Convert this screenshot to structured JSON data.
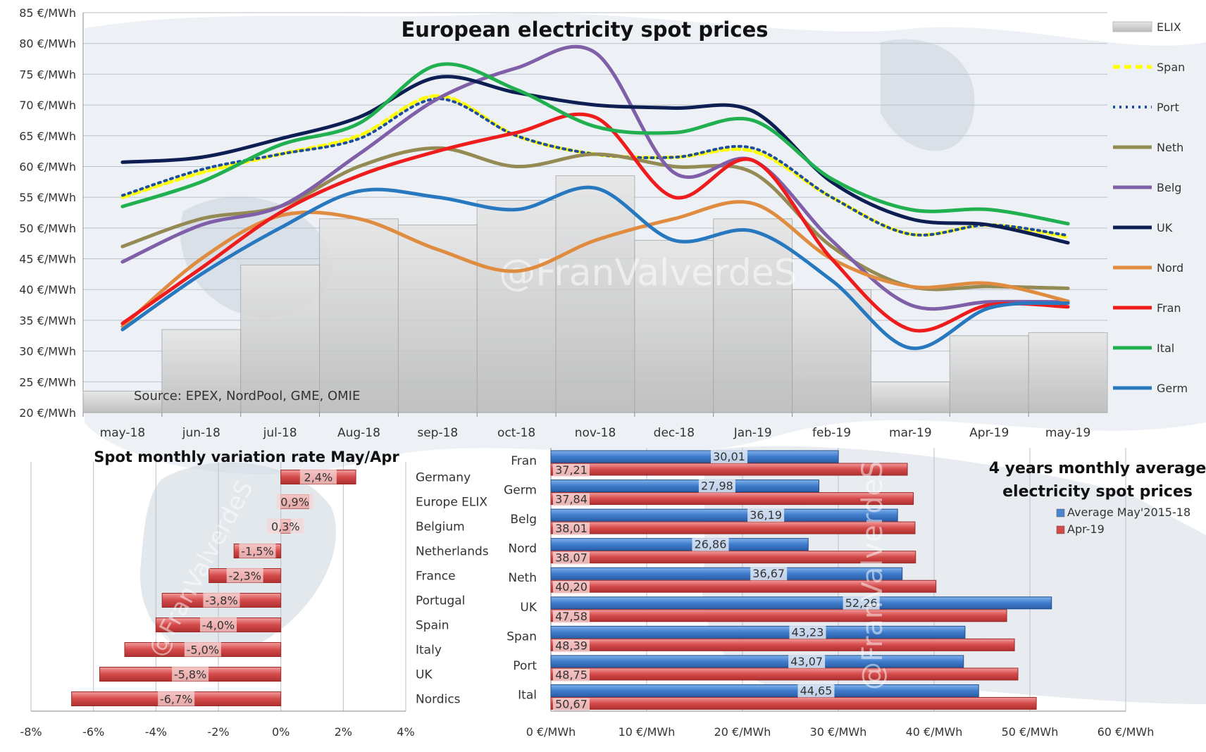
{
  "chart_data": [
    {
      "type": "line",
      "title": "European electricity spot prices",
      "source_note": "Source: EPEX, NordPool, GME, OMIE",
      "watermark": "@FranValverdeS",
      "y_unit": "€/MWh",
      "ylim": [
        20,
        85
      ],
      "y_ticks": [
        "20 €/MWh",
        "25 €/MWh",
        "30 €/MWh",
        "35 €/MWh",
        "40 €/MWh",
        "45 €/MWh",
        "50 €/MWh",
        "55 €/MWh",
        "60 €/MWh",
        "65 €/MWh",
        "70 €/MWh",
        "75 €/MWh",
        "80 €/MWh",
        "85 €/MWh"
      ],
      "categories": [
        "may-18",
        "jun-18",
        "jul-18",
        "Aug-18",
        "sep-18",
        "oct-18",
        "nov-18",
        "dec-18",
        "Jan-19",
        "feb-19",
        "mar-19",
        "Apr-19",
        "may-19"
      ],
      "grid": true,
      "legend_position": "right",
      "bar_series": {
        "name": "ELIX",
        "color": "#c8c8c8",
        "values": [
          23.5,
          33.5,
          44,
          51.5,
          50.5,
          54.5,
          58.5,
          48,
          51.5,
          40,
          25,
          32.5,
          33
        ]
      },
      "series": [
        {
          "name": "Span",
          "color": "#ffff00",
          "dash": "dash",
          "values": [
            55,
            59,
            62,
            65,
            71.5,
            65,
            62,
            61.5,
            62.5,
            55,
            49,
            50.5,
            48.5
          ]
        },
        {
          "name": "Port",
          "color": "#1f4e9c",
          "dash": "dot",
          "values": [
            55.3,
            59.5,
            62,
            64.5,
            71,
            65,
            62,
            61.5,
            63,
            55,
            49,
            50.5,
            48.8
          ]
        },
        {
          "name": "Neth",
          "color": "#948a54",
          "values": [
            47,
            51.5,
            53.5,
            60,
            63,
            60,
            62,
            60,
            59,
            47,
            40.5,
            40.5,
            40.2
          ]
        },
        {
          "name": "Belg",
          "color": "#7f5fa8",
          "values": [
            44.5,
            50.5,
            53.5,
            62,
            71,
            76,
            78.5,
            59,
            61,
            48,
            37.5,
            38,
            38
          ]
        },
        {
          "name": "UK",
          "color": "#0d1f52",
          "values": [
            60.7,
            61.5,
            64.5,
            68,
            74.5,
            72,
            70,
            69.5,
            69,
            57.5,
            51.5,
            50.5,
            47.6
          ]
        },
        {
          "name": "Nord",
          "color": "#e08c40",
          "values": [
            34,
            45,
            52,
            51.5,
            46.5,
            43,
            48,
            51.5,
            54,
            45,
            40.5,
            41,
            38.1
          ]
        },
        {
          "name": "Fran",
          "color": "#ee1c1c",
          "values": [
            34.5,
            43.5,
            52.5,
            58.5,
            62.5,
            65.5,
            68,
            55,
            61,
            45,
            33.5,
            37.5,
            37.2
          ]
        },
        {
          "name": "Ital",
          "color": "#20b050",
          "values": [
            53.5,
            57.5,
            63.5,
            67,
            76.5,
            72.5,
            66.5,
            65.5,
            67.5,
            58,
            53,
            53,
            50.7
          ]
        },
        {
          "name": "Germ",
          "color": "#2878c0",
          "values": [
            33.5,
            42.5,
            50,
            56,
            55,
            53,
            56.5,
            48,
            49.5,
            41.5,
            30.5,
            37,
            37.8
          ]
        }
      ]
    },
    {
      "type": "bar",
      "orientation": "horizontal",
      "title": "Spot monthly variation rate May/Apr",
      "color": "#d44a4a",
      "categories": [
        "Germany",
        "Europe ELIX",
        "Belgium",
        "Netherlands",
        "France",
        "Portugal",
        "Spain",
        "Italy",
        "UK",
        "Nordics"
      ],
      "values": [
        2.4,
        0.9,
        0.3,
        -1.5,
        -2.3,
        -3.8,
        -4.0,
        -5.0,
        -5.8,
        -6.7
      ],
      "labels": [
        "2,4%",
        "0,9%",
        "0,3%",
        "-1,5%",
        "-2,3%",
        "-3,8%",
        "-4,0%",
        "-5,0%",
        "-5,8%",
        "-6,7%"
      ],
      "xlim": [
        -8,
        4
      ],
      "x_ticks": [
        "-8%",
        "-6%",
        "-4%",
        "-2%",
        "0%",
        "2%",
        "4%"
      ],
      "grid": true
    },
    {
      "type": "bar",
      "orientation": "horizontal",
      "title": "4 years monthly average electricity spot prices",
      "legend_position": "top-right",
      "categories": [
        "Fran",
        "Germ",
        "Belg",
        "Nord",
        "Neth",
        "UK",
        "Span",
        "Port",
        "Ital"
      ],
      "series": [
        {
          "name": "Average May'2015-18",
          "color": "#4a86d0",
          "values": [
            30.01,
            27.98,
            36.19,
            26.86,
            36.67,
            52.26,
            43.23,
            43.07,
            44.65
          ],
          "labels": [
            "30,01",
            "27,98",
            "36,19",
            "26,86",
            "36,67",
            "52,26",
            "43,23",
            "43,07",
            "44,65"
          ]
        },
        {
          "name": "Apr-19",
          "color": "#d44a4a",
          "values": [
            37.21,
            37.84,
            38.01,
            38.07,
            40.2,
            47.58,
            48.39,
            48.75,
            50.67
          ],
          "labels": [
            "37,21",
            "37,84",
            "38,01",
            "38,07",
            "40,20",
            "47,58",
            "48,39",
            "48,75",
            "50,67"
          ]
        }
      ],
      "xlim": [
        0,
        60
      ],
      "x_ticks": [
        "0 €/MWh",
        "10 €/MWh",
        "20 €/MWh",
        "30 €/MWh",
        "40 €/MWh",
        "50 €/MWh",
        "60 €/MWh"
      ],
      "grid": true
    }
  ]
}
